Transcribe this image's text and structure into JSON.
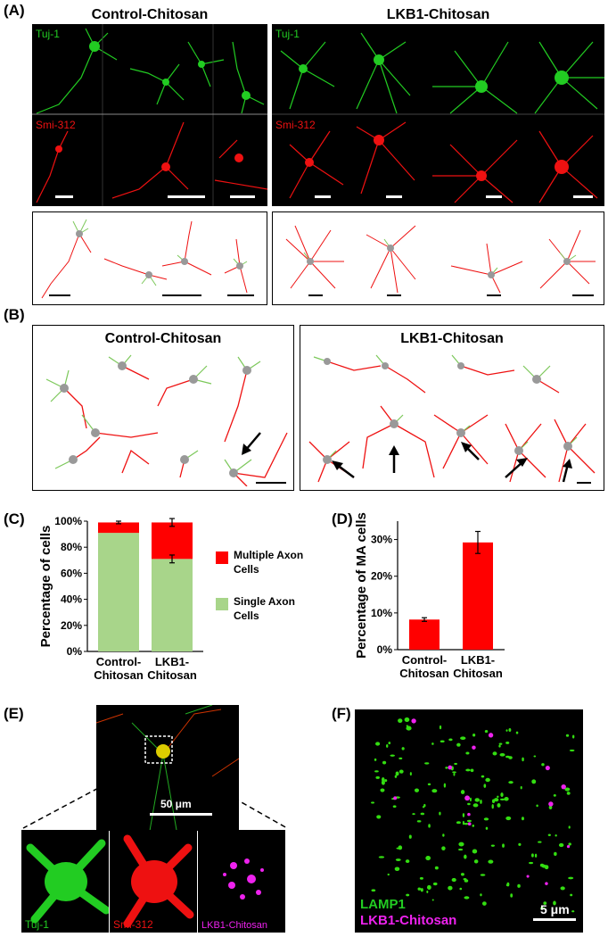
{
  "figure": {
    "panel_a": {
      "label": "(A)",
      "title_control": "Control-Chitosan",
      "title_lkb1": "LKB1-Chitosan",
      "label_tuj1": "Tuj-1",
      "label_smi312": "Smi-312"
    },
    "panel_b": {
      "label": "(B)",
      "title_control": "Control-Chitosan",
      "title_lkb1": "LKB1-Chitosan"
    },
    "panel_c": {
      "label": "(C)"
    },
    "panel_d": {
      "label": "(D)"
    },
    "panel_e": {
      "label": "(E)",
      "scale_text": "50 μm",
      "label_tuj1": "Tuj-1",
      "label_smi312": "Smi-312",
      "label_lkb1": "LKB1-Chitosan"
    },
    "panel_f": {
      "label": "(F)",
      "label_lamp1": "LAMP1",
      "label_lkb1": "LKB1-Chitosan",
      "scale_text": "5 μm"
    }
  },
  "colors": {
    "green": "#22cc22",
    "red": "#ee1111",
    "magenta": "#ee22ee",
    "bar_green": "#a8d58a",
    "bar_red": "#ff0000"
  },
  "chart_data": [
    {
      "type": "bar",
      "stacked": true,
      "categories": [
        "Control-\nChitosan",
        "LKB1-\nChitosan"
      ],
      "category_lines": [
        [
          "Control-",
          "Chitosan"
        ],
        [
          "LKB1-",
          "Chitosan"
        ]
      ],
      "series": [
        {
          "name": "Single Axon Cells",
          "name_lines": [
            "Single Axon",
            "Cells"
          ],
          "values": [
            91,
            71
          ],
          "err": [
            0,
            3
          ]
        },
        {
          "name": "Multiple Axon Cells",
          "name_lines": [
            "Multiple Axon",
            "Cells"
          ],
          "values": [
            8,
            28
          ],
          "err": [
            1,
            3
          ]
        }
      ],
      "ylabel": "Percentage of cells",
      "ylim": [
        0,
        100
      ],
      "yticks": [
        "0%",
        "20%",
        "40%",
        "60%",
        "80%",
        "100%"
      ],
      "legend": "right"
    },
    {
      "type": "bar",
      "categories": [
        "Control-\nChitosan",
        "LKB1-\nChitosan"
      ],
      "category_lines": [
        [
          "Control-",
          "Chitosan"
        ],
        [
          "LKB1-",
          "Chitosan"
        ]
      ],
      "values": [
        8.2,
        29.2
      ],
      "err": [
        0.5,
        3.0
      ],
      "ylabel": "Percentage of MA cells",
      "ylim": [
        0,
        35
      ],
      "yticks": [
        "0%",
        "10%",
        "20%",
        "30%"
      ]
    }
  ]
}
